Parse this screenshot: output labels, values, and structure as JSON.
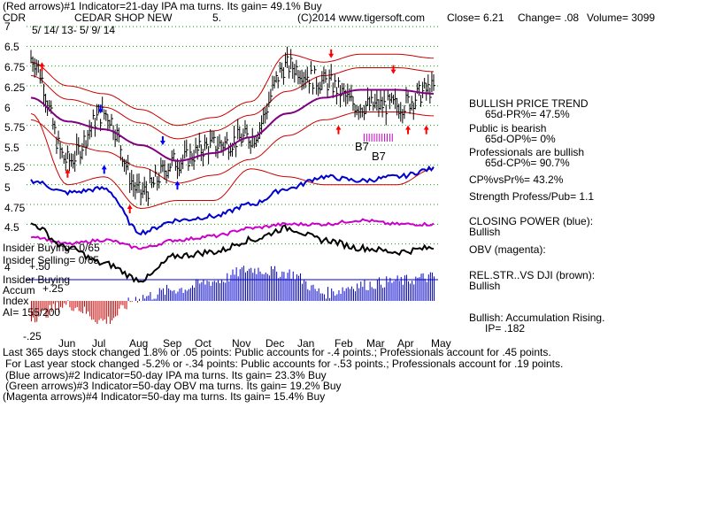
{
  "header": {
    "line1": "(Red arrows)#1 Indicator=21-day IPA ma turns. Its gain= 49.1% Buy",
    "symbol": "CDR",
    "company": "CEDAR SHOP NEW",
    "five": "5.",
    "copyright": "(C)2014 www.tigersoft.com",
    "close": "Close=  6.21",
    "change": "Change= .08",
    "volume": "Volume= 3099",
    "date_range": "5/ 14/ 13-  5/ 9/ 14"
  },
  "y_ticks": [
    "7",
    "6.75",
    "6.5",
    "6.25",
    "6",
    "5.75",
    "5.5",
    "5.25",
    "5",
    "4.75",
    "4.5",
    "4"
  ],
  "month_labels": [
    "Jun",
    "Jul",
    "Aug",
    "Sep",
    "Oct",
    "Nov",
    "Dec",
    "Jan",
    "Feb",
    "Mar",
    "Apr",
    "May"
  ],
  "left_labels": {
    "insider_buying1": "Insider Buying= 0/65",
    "insider_selling": "Insider Selling= 0/65",
    "insider_buying2": "Insider Buying",
    "accum": "Accum",
    "accum_val": "+.25",
    "index": "Index",
    "ai": "AI= 155/200",
    "neg25": "-.25",
    "days_val": "+.50"
  },
  "annotations": [
    "B7",
    "B7"
  ],
  "right_panel": {
    "trend": "BULLISH PRICE TREND",
    "pr": "65d-PR%= 47.5%",
    "public": "Public is bearish",
    "op": "65d-OP%= 0%",
    "prof": "Professionals are bullish",
    "cp": "65d-CP%= 90.7%",
    "cpvspr": "CP%vsPr%=  43.2%",
    "strength": "Strength Profess/Pub= 1.1",
    "closing": "CLOSING POWER (blue):",
    "closing_val": "Bullish",
    "obv": "OBV (magenta):",
    "relstr": "REL.STR..VS DJI (brown):",
    "relstr_val": "Bullish",
    "accum": "Bullish: Accumulation Rising.",
    "ip": "IP=  .182"
  },
  "footer": [
    "Last 365 days stock changed  1.8% or  .05 points:  Public accounts for -.4 points.;  Professionals account for  .45 points.",
    "For Last year stock changed -5.2% or -.34 points:  Public accounts for -.53 points.;  Professionals account for  .19 points.",
    "(Blue arrows)#2 Indicator=50-day IPA ma turns. Its gain= 23.3% Buy",
    "(Green arrows)#3 Indicator=50-day OBV ma turns. Its gain= 19.2% Buy",
    "(Magenta arrows)#4 Indicator=50-day ma turns. Its gain= 15.4% Buy"
  ],
  "colors": {
    "price": "#000000",
    "bands": "#cc0000",
    "ma": "#800080",
    "closing_power": "#0000cc",
    "obv": "#cc00cc",
    "grid": "#00aa00",
    "accum_pos": "#0000cc",
    "accum_neg": "#cc0000",
    "arrow_red": "#ff0000",
    "arrow_blue": "#0000ff"
  },
  "chart_data": {
    "type": "line",
    "title": "CEDAR SHOP NEW",
    "x": [
      "Jun",
      "Jul",
      "Aug",
      "Sep",
      "Oct",
      "Nov",
      "Dec",
      "Jan",
      "Feb",
      "Mar",
      "Apr",
      "May"
    ],
    "ylim": [
      4,
      7
    ],
    "series": [
      {
        "values": [
          6.6,
          5.3,
          5.9,
          4.9,
          5.3,
          5.5,
          5.6,
          6.5,
          6.3,
          6.0,
          6.0,
          6.21
        ]
      },
      {
        "values": [
          6.1,
          5.8,
          5.7,
          5.5,
          5.3,
          5.4,
          5.6,
          5.9,
          6.1,
          6.2,
          6.2,
          6.15
        ]
      },
      {
        "values": [
          5.9,
          5.0,
          5.1,
          4.7,
          4.8,
          4.8,
          5.2,
          5.1,
          5.0,
          5.0,
          5.0,
          5.2
        ]
      }
    ]
  }
}
